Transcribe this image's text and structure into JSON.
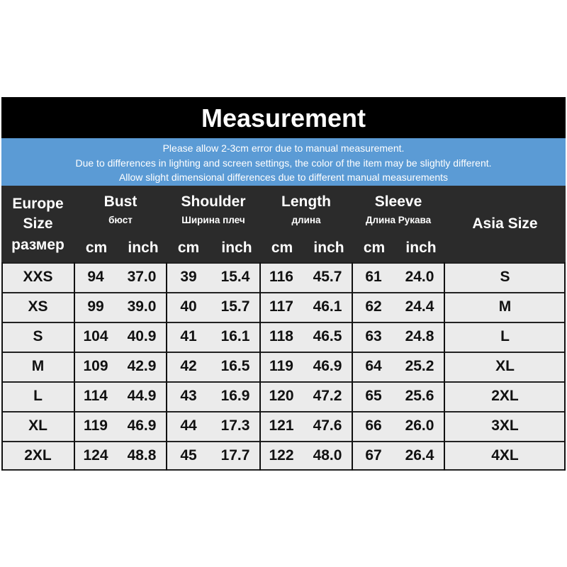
{
  "title": "Measurement",
  "notes": [
    "Please allow 2-3cm error due to manual measurement.",
    "Due to differences in lighting and screen settings, the color of the item may be slightly different.",
    "Allow slight dimensional differences due to different manual measurements"
  ],
  "header": {
    "europe": [
      "Europe",
      "Size",
      "размер"
    ],
    "bust": {
      "label": "Bust",
      "sub": "бюст"
    },
    "shoulder": {
      "label": "Shoulder",
      "sub": "Ширина плеч"
    },
    "length": {
      "label": "Length",
      "sub": "длина"
    },
    "sleeve": {
      "label": "Sleeve",
      "sub": "Длина Рукава"
    },
    "asia": "Asia Size",
    "cm": "cm",
    "inch": "inch"
  },
  "rows": [
    [
      "XXS",
      "94",
      "37.0",
      "39",
      "15.4",
      "116",
      "45.7",
      "61",
      "24.0",
      "S"
    ],
    [
      "XS",
      "99",
      "39.0",
      "40",
      "15.7",
      "117",
      "46.1",
      "62",
      "24.4",
      "M"
    ],
    [
      "S",
      "104",
      "40.9",
      "41",
      "16.1",
      "118",
      "46.5",
      "63",
      "24.8",
      "L"
    ],
    [
      "M",
      "109",
      "42.9",
      "42",
      "16.5",
      "119",
      "46.9",
      "64",
      "25.2",
      "XL"
    ],
    [
      "L",
      "114",
      "44.9",
      "43",
      "16.9",
      "120",
      "47.2",
      "65",
      "25.6",
      "2XL"
    ],
    [
      "XL",
      "119",
      "46.9",
      "44",
      "17.3",
      "121",
      "47.6",
      "66",
      "26.0",
      "3XL"
    ],
    [
      "2XL",
      "124",
      "48.8",
      "45",
      "17.7",
      "122",
      "48.0",
      "67",
      "26.4",
      "4XL"
    ]
  ],
  "colors": {
    "title_bg": "#000000",
    "notes_bg": "#5b9bd5",
    "header_bg": "#2b2b2b",
    "cell_bg": "#ebebeb"
  }
}
